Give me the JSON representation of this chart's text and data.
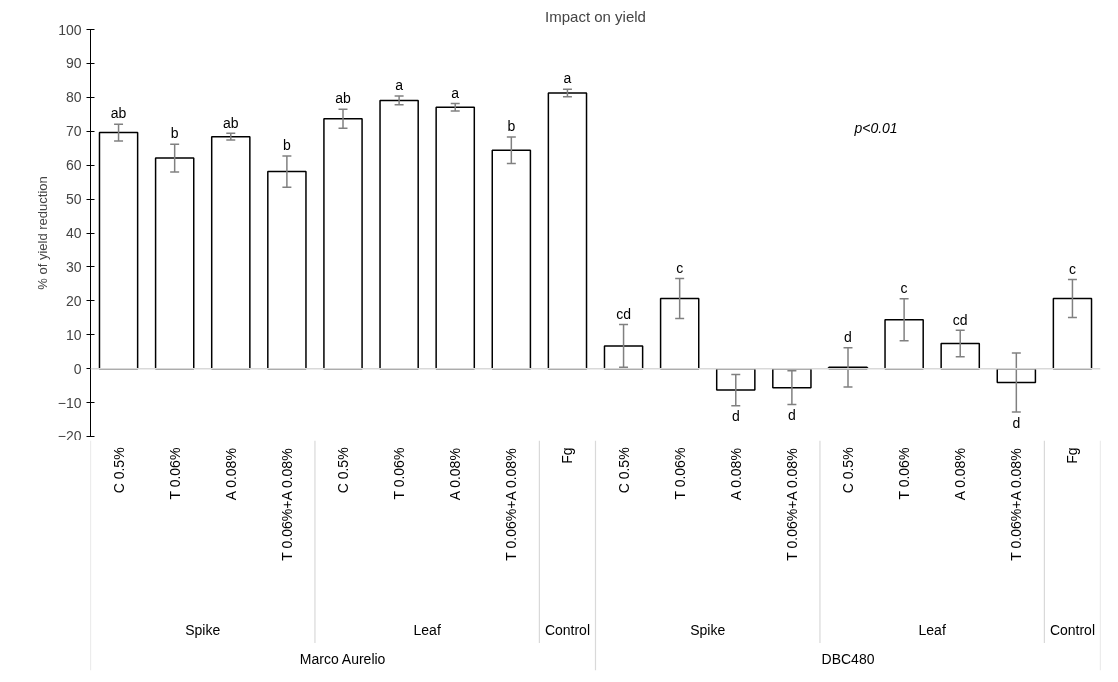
{
  "chart_data": {
    "type": "bar",
    "title": "Impact on yield",
    "ylabel": "% of yield reduction",
    "categories": [
      "C 0.5%",
      "T 0.06%",
      "A 0.08%",
      "T 0.06%+A 0.08%",
      "C 0.5%",
      "T 0.06%",
      "A 0.08%",
      "T 0.06%+A 0.08%",
      "Fg",
      "C 0.5%",
      "T 0.06%",
      "A 0.08%",
      "T 0.06%+A 0.08%",
      "C 0.5%",
      "T 0.06%",
      "A 0.08%",
      "T 0.06%+A 0.08%",
      "Fg"
    ],
    "values": [
      69.6,
      62.1,
      68.4,
      58.1,
      73.7,
      79.1,
      77.1,
      64.4,
      81.3,
      6.7,
      20.7,
      -6.3,
      -5.6,
      0.4,
      14.4,
      7.4,
      -4.1,
      20.7
    ],
    "errors": [
      2.5,
      4.1,
      1,
      4.6,
      2.8,
      1.3,
      1.1,
      3.9,
      1.1,
      6.3,
      5.9,
      4.6,
      5,
      5.8,
      6.2,
      3.9,
      8.7,
      5.6
    ],
    "value_labels": [
      "ab",
      "b",
      "ab",
      "b",
      "ab",
      "a",
      "a",
      "b",
      "a",
      "cd",
      "c",
      "d",
      "d",
      "d",
      "c",
      "cd",
      "d",
      "c"
    ],
    "color": "#ffffff",
    "ylim": [
      -20,
      100
    ],
    "yticks": [
      -20,
      -10,
      0,
      10,
      20,
      30,
      40,
      50,
      60,
      70,
      80,
      90,
      100
    ],
    "ref_lines": [
      {
        "axis": "y",
        "value": 0,
        "color": "#d9d9d9"
      }
    ],
    "annotations": [
      "p<0.01",
      "Spike",
      "Leaf",
      "Control",
      "Spike",
      "Leaf",
      "Control",
      "Marco Aurelio",
      "DBC480"
    ],
    "grid": false
  }
}
